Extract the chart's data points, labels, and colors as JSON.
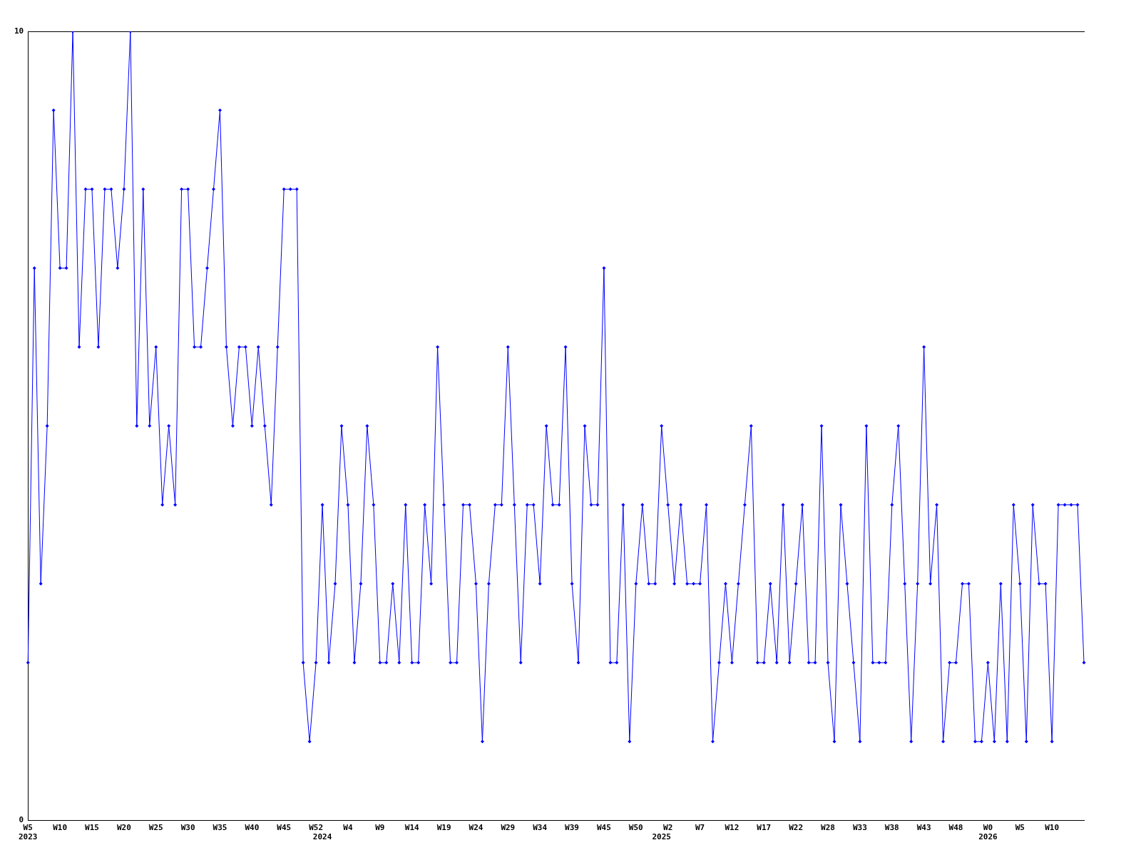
{
  "chart_data": {
    "type": "line",
    "categories": [
      "W5\n2023",
      null,
      null,
      null,
      null,
      "W10",
      null,
      null,
      null,
      null,
      "W15",
      null,
      null,
      null,
      null,
      "W20",
      null,
      null,
      null,
      null,
      "W25",
      null,
      null,
      null,
      null,
      "W30",
      null,
      null,
      null,
      null,
      "W35",
      null,
      null,
      null,
      null,
      "W40",
      null,
      null,
      null,
      null,
      "W45",
      null,
      null,
      null,
      null,
      "W52",
      "\n2024",
      null,
      null,
      null,
      "W4",
      null,
      null,
      null,
      null,
      "W9",
      null,
      null,
      null,
      null,
      "W14",
      null,
      null,
      null,
      null,
      "W19",
      null,
      null,
      null,
      null,
      "W24",
      null,
      null,
      null,
      null,
      "W29",
      null,
      null,
      null,
      null,
      "W34",
      null,
      null,
      null,
      null,
      "W39",
      null,
      null,
      null,
      null,
      "W45",
      null,
      null,
      null,
      null,
      "W50",
      null,
      null,
      null,
      "\n2025",
      "W2",
      null,
      null,
      null,
      null,
      "W7",
      null,
      null,
      null,
      null,
      "W12",
      null,
      null,
      null,
      null,
      "W17",
      null,
      null,
      null,
      null,
      "W22",
      null,
      null,
      null,
      null,
      "W28",
      null,
      null,
      null,
      null,
      "W33",
      null,
      null,
      null,
      null,
      "W38",
      null,
      null,
      null,
      null,
      "W43",
      null,
      null,
      null,
      null,
      "W48",
      null,
      null,
      null,
      null,
      "W0\n2026",
      null,
      null,
      null,
      null,
      "W5",
      null,
      null,
      null,
      null,
      "W10",
      null,
      null,
      null,
      null,
      null
    ],
    "values": [
      2,
      7,
      3,
      5,
      9,
      7,
      7,
      10,
      6,
      8,
      8,
      6,
      8,
      8,
      7,
      8,
      10,
      5,
      8,
      5,
      6,
      4,
      5,
      4,
      8,
      8,
      6,
      6,
      7,
      8,
      9,
      6,
      5,
      6,
      6,
      5,
      6,
      5,
      4,
      6,
      8,
      8,
      8,
      2,
      1,
      2,
      4,
      2,
      3,
      5,
      4,
      2,
      3,
      5,
      4,
      2,
      2,
      3,
      2,
      4,
      2,
      2,
      4,
      3,
      6,
      4,
      2,
      2,
      4,
      4,
      3,
      1,
      3,
      4,
      4,
      6,
      4,
      2,
      4,
      4,
      3,
      5,
      4,
      4,
      6,
      3,
      2,
      5,
      4,
      4,
      7,
      2,
      2,
      4,
      1,
      3,
      4,
      3,
      3,
      5,
      4,
      3,
      4,
      3,
      3,
      3,
      4,
      1,
      2,
      3,
      2,
      3,
      4,
      5,
      2,
      2,
      3,
      2,
      4,
      2,
      3,
      4,
      2,
      2,
      5,
      2,
      1,
      4,
      3,
      2,
      1,
      5,
      2,
      2,
      2,
      4,
      5,
      3,
      1,
      3,
      6,
      3,
      4,
      1,
      2,
      2,
      3,
      3,
      1,
      1,
      2,
      1,
      3,
      1,
      4,
      3,
      1,
      4,
      3,
      3,
      1,
      4,
      4,
      4,
      4,
      2
    ],
    "color": "#0000ff",
    "marker": "diamond",
    "line_style": "solid",
    "ylim": [
      0,
      10
    ],
    "yticks": [
      0,
      10
    ],
    "grid": false,
    "legend": false
  }
}
